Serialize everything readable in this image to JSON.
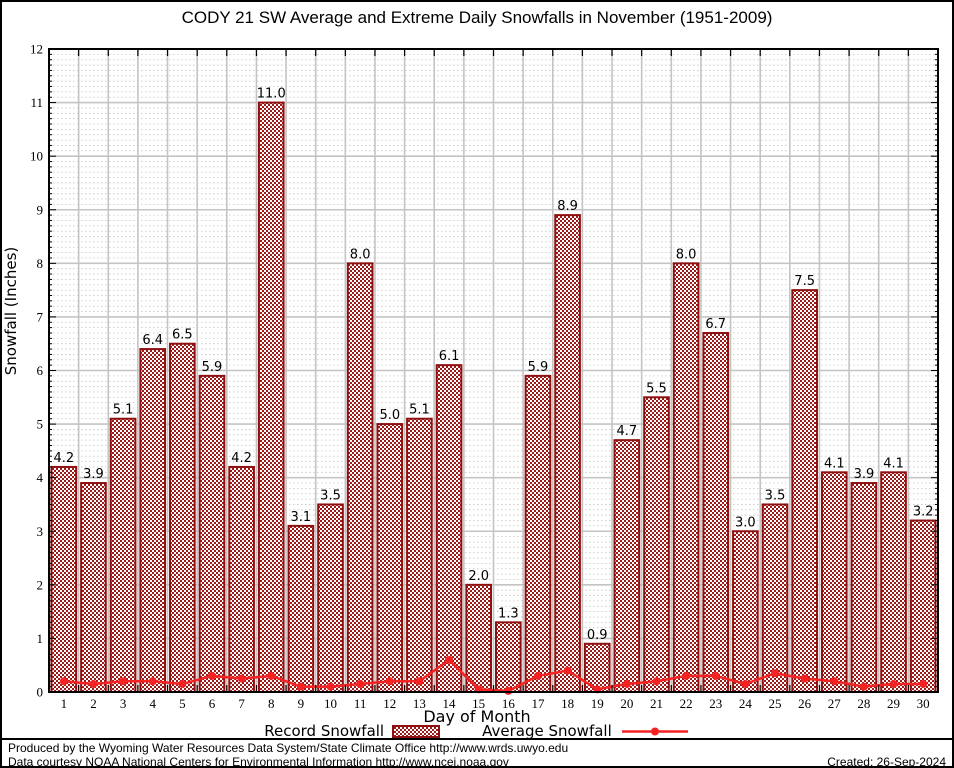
{
  "chart_data": {
    "type": "bar",
    "title": "CODY 21 SW Average and Extreme Daily Snowfalls in November (1951-2009)",
    "xlabel": "Day of Month",
    "ylabel": "Snowfall (Inches)",
    "ylim": [
      0,
      12
    ],
    "y_major_step": 1,
    "y_minor_step": 0.1,
    "grid": true,
    "legend_position": "bottom",
    "categories": [
      1,
      2,
      3,
      4,
      5,
      6,
      7,
      8,
      9,
      10,
      11,
      12,
      13,
      14,
      15,
      16,
      17,
      18,
      19,
      20,
      21,
      22,
      23,
      24,
      25,
      26,
      27,
      28,
      29,
      30
    ],
    "series": [
      {
        "name": "Record Snowfall",
        "type": "bar",
        "values": [
          4.2,
          3.9,
          5.1,
          6.4,
          6.5,
          5.9,
          4.2,
          11.0,
          3.1,
          3.5,
          8.0,
          5.0,
          5.1,
          6.1,
          2.0,
          1.3,
          5.9,
          8.9,
          0.9,
          4.7,
          5.5,
          8.0,
          6.7,
          3.0,
          3.5,
          7.5,
          4.1,
          3.9,
          4.1,
          3.2
        ],
        "data_labels": [
          "4.2",
          "3.9",
          "5.1",
          "6.4",
          "6.5",
          "5.9",
          "4.2",
          "11.0",
          "3.1",
          "3.5",
          "8.0",
          "5.0",
          "5.1",
          "6.1",
          "2.0",
          "1.3",
          "5.9",
          "8.9",
          "0.9",
          "4.7",
          "5.5",
          "8.0",
          "6.7",
          "3.0",
          "3.5",
          "7.5",
          "4.1",
          "3.9",
          "4.1",
          "3.2"
        ]
      },
      {
        "name": "Average Snowfall",
        "type": "line",
        "values": [
          0.2,
          0.15,
          0.2,
          0.2,
          0.15,
          0.3,
          0.25,
          0.3,
          0.1,
          0.1,
          0.15,
          0.2,
          0.2,
          0.6,
          0.05,
          0.02,
          0.3,
          0.4,
          0.05,
          0.15,
          0.2,
          0.3,
          0.3,
          0.15,
          0.35,
          0.25,
          0.2,
          0.1,
          0.15,
          0.15
        ]
      }
    ]
  },
  "legend": {
    "record_label": "Record Snowfall",
    "average_label": "Average Snowfall"
  },
  "colors": {
    "bar_pattern": "#9b1b1b",
    "bar_border": "#8f1010",
    "avg_line": "#f42222",
    "grid_major": "#c4c4c4",
    "grid_minor": "#c4c4c4",
    "axis": "#000000",
    "text": "#000000",
    "background": "#ffffff"
  },
  "footer": {
    "line1": "Produced by the Wyoming Water Resources Data System/State Climate Office http://www.wrds.uwyo.edu",
    "line2": "Data courtesy NOAA National Centers for Environmental Information http://www.ncei.noaa.gov",
    "created": "Created: 26-Sep-2024"
  }
}
